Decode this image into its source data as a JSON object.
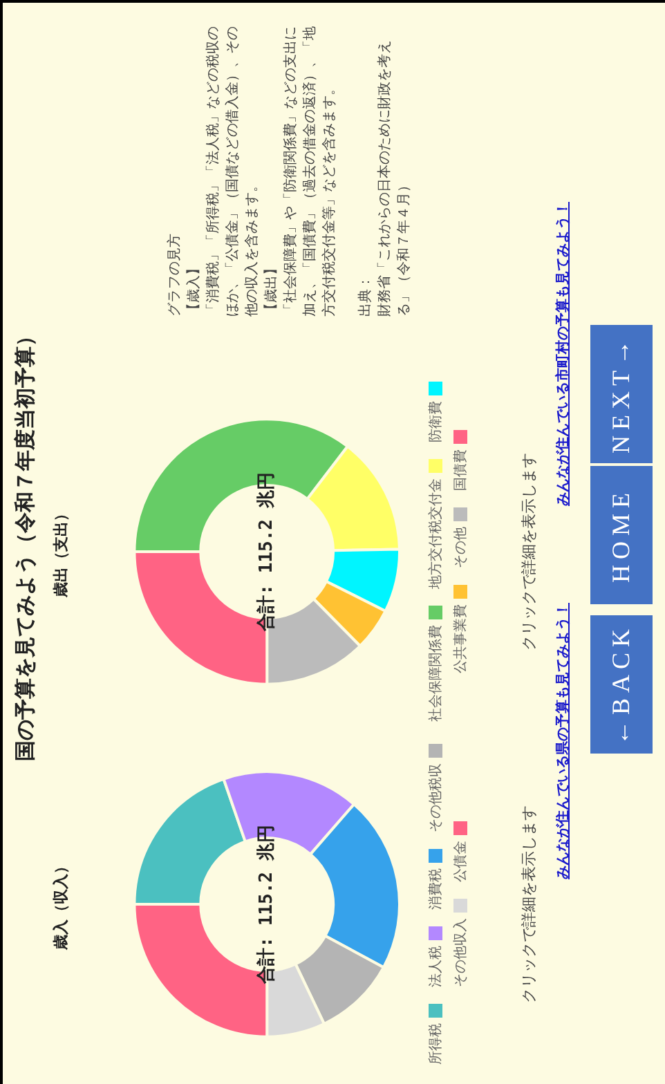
{
  "chart_data": [
    {
      "type": "other",
      "title": "国の予算を見てみよう（令和７年度当初予算）"
    },
    {
      "type": "donut",
      "title": "歳入（収入）",
      "categories": [
        "所得税",
        "法人税",
        "消費税",
        "その他税収",
        "その他収入",
        "公債金"
      ],
      "values": [
        19.7,
        16.7,
        21.5,
        10.0,
        7.1,
        25.0
      ],
      "colors": [
        "#4bc0c0",
        "#b388ff",
        "#36a2eb",
        "#b4b4b4",
        "#d9d9d9",
        "#ff6384"
      ],
      "legend": "right",
      "annotations": [
        "合計: 115.2 兆円",
        "クリックで詳細を表示します"
      ]
    },
    {
      "type": "donut",
      "title": "歳出（支出）",
      "categories": [
        "社会保障関係費",
        "地方交付税交付金",
        "防衛費",
        "公共事業費",
        "その他",
        "国債費"
      ],
      "values": [
        35.4,
        14.3,
        7.7,
        5.2,
        12.4,
        25.0
      ],
      "colors": [
        "#66cc66",
        "#ffff66",
        "#00f5ff",
        "#ffc233",
        "#bbbbbb",
        "#ff6384"
      ],
      "legend": "right",
      "annotations": [
        "合計: 115.2 兆円",
        "クリックで詳細を表示します"
      ]
    },
    {
      "type": "other",
      "title": "グラフの見方",
      "annotations": [
        "【歳入】",
        "「消費税」「所得税」「法人税」などの税収のほか、「公債金」（国債などの借入金）、その他の収入を含みます。",
        "【歳出】",
        "「社会保障費」や「防衛関係費」などの支出に加え、「国債費」（過去の借金の返済）、「地方交付税交付金等」などを含みます。",
        "出典：",
        "財務省「これからの日本のために財政を考える」（令和７年４月）"
      ]
    },
    {
      "type": "other",
      "annotations": [
        "みんなが住んでいる県の予算も見てみよう！",
        "みんなが住んでいる市町村の予算も見てみよう！",
        "←BACK",
        "HOME",
        "NEXT→"
      ]
    }
  ]
}
